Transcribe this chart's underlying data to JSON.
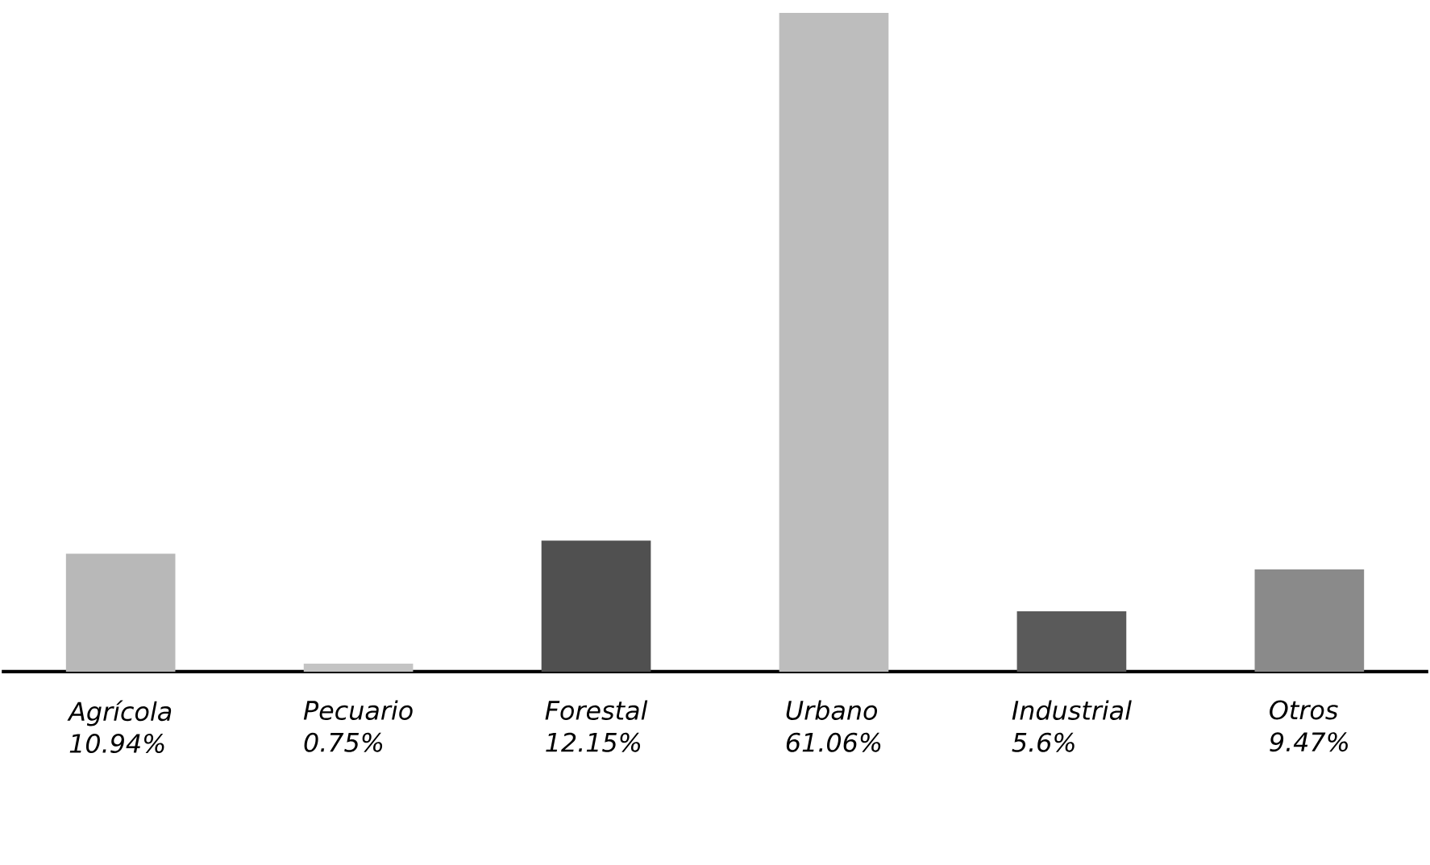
{
  "chart_data": {
    "type": "bar",
    "categories": [
      "Agrícola",
      "Pecuario",
      "Forestal",
      "Urbano",
      "Industrial",
      "Otros"
    ],
    "values": [
      10.94,
      0.75,
      12.15,
      61.06,
      5.6,
      9.47
    ],
    "value_labels": [
      "10.94%",
      "0.75%",
      "12.15%",
      "61.06%",
      "5.6%",
      "9.47%"
    ],
    "colors": [
      "#b8b8b8",
      "#c4c4c4",
      "#505050",
      "#bdbdbd",
      "#5a5a5a",
      "#8a8a8a"
    ]
  }
}
